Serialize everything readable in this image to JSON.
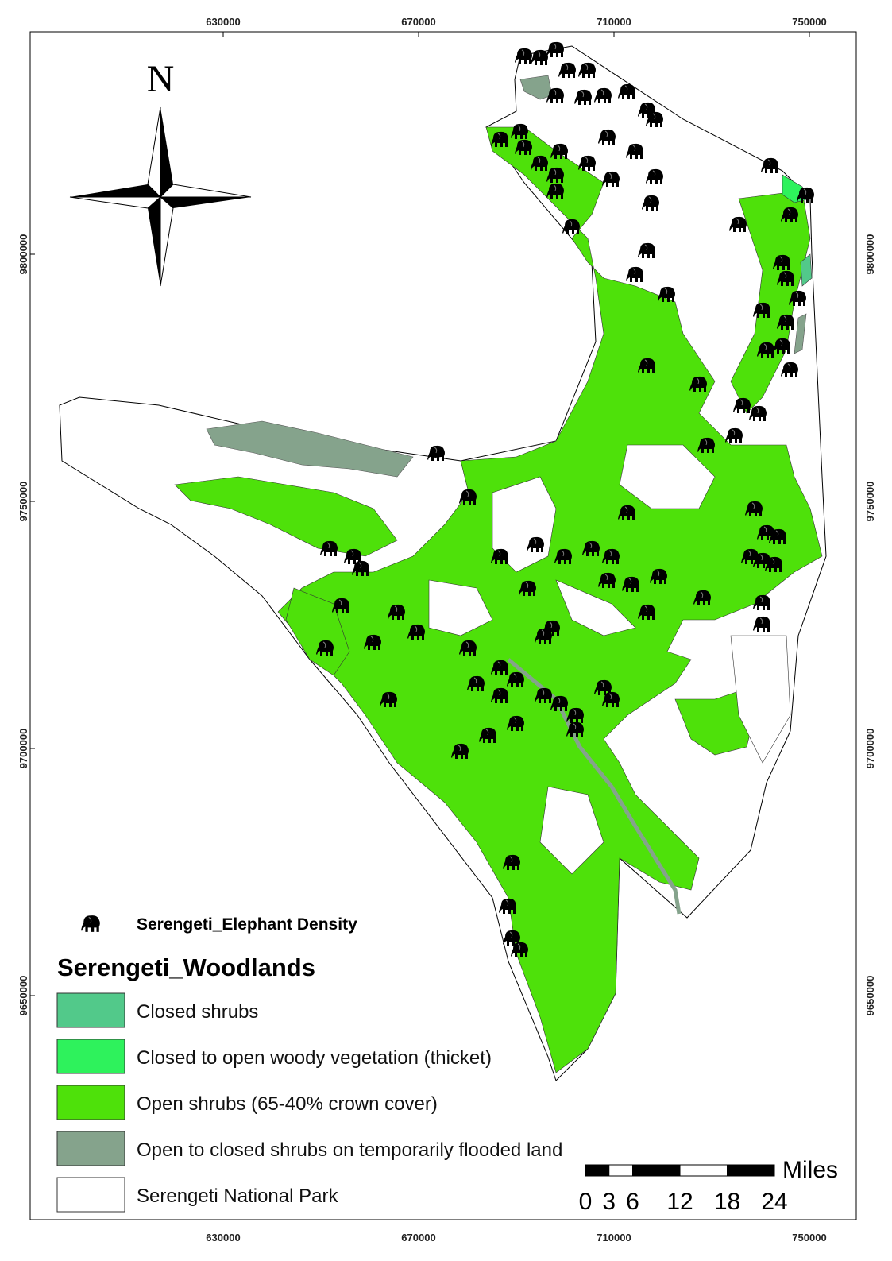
{
  "grid_labels": {
    "x": [
      630000,
      670000,
      710000,
      750000
    ],
    "y": [
      9800000,
      9750000,
      9700000,
      9650000
    ]
  },
  "north_label": "N",
  "legend": {
    "point_layer": "Serengeti_Elephant Density",
    "title": "Serengeti_Woodlands",
    "items": [
      {
        "label": "Closed shrubs",
        "color": "#52c98a"
      },
      {
        "label": "Closed to open woody vegetation (thicket)",
        "color": "#2ef25c"
      },
      {
        "label": "Open shrubs (65-40% crown cover)",
        "color": "#4ee10a"
      },
      {
        "label": "Open to closed shrubs on temporarily flooded land",
        "color": "#85a38c"
      },
      {
        "label": "Serengeti National Park",
        "color": "#ffffff"
      }
    ]
  },
  "scale_bar": {
    "unit": "Miles",
    "ticks": [
      0,
      3,
      6,
      12,
      18,
      24
    ]
  }
}
